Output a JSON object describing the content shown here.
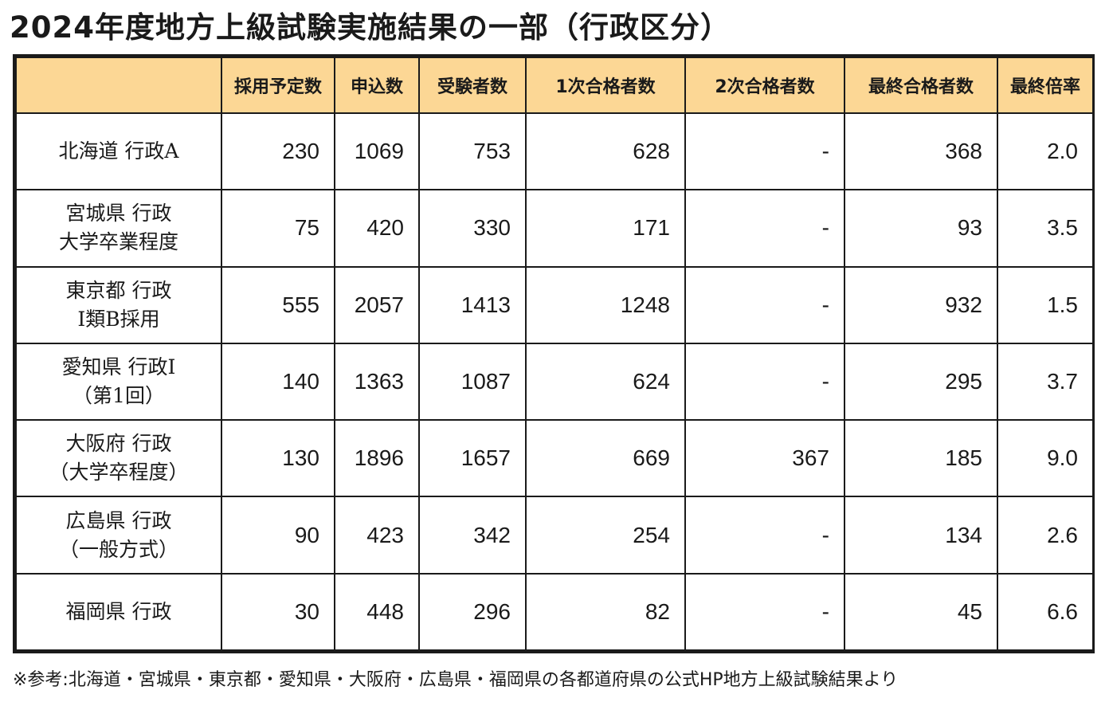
{
  "title": "2024年度地方上級試験実施結果の一部（行政区分）",
  "headers": [
    "",
    "採用予定数",
    "申込数",
    "受験者数",
    "1次合格者数",
    "2次合格者数",
    "最終合格者数",
    "最終倍率"
  ],
  "rows": [
    {
      "name1": "北海道 行政A",
      "name2": "",
      "cells": [
        "230",
        "1069",
        "753",
        "628",
        "-",
        "368",
        "2.0"
      ]
    },
    {
      "name1": "宮城県 行政",
      "name2": "大学卒業程度",
      "cells": [
        "75",
        "420",
        "330",
        "171",
        "-",
        "93",
        "3.5"
      ]
    },
    {
      "name1": "東京都 行政",
      "name2": "I類B採用",
      "cells": [
        "555",
        "2057",
        "1413",
        "1248",
        "-",
        "932",
        "1.5"
      ]
    },
    {
      "name1": "愛知県 行政I",
      "name2": "（第1回）",
      "cells": [
        "140",
        "1363",
        "1087",
        "624",
        "-",
        "295",
        "3.7"
      ]
    },
    {
      "name1": "大阪府 行政",
      "name2": "（大学卒程度）",
      "cells": [
        "130",
        "1896",
        "1657",
        "669",
        "367",
        "185",
        "9.0"
      ]
    },
    {
      "name1": "広島県 行政",
      "name2": "（一般方式）",
      "cells": [
        "90",
        "423",
        "342",
        "254",
        "-",
        "134",
        "2.6"
      ]
    },
    {
      "name1": "福岡県 行政",
      "name2": "",
      "cells": [
        "30",
        "448",
        "296",
        "82",
        "-",
        "45",
        "6.6"
      ]
    }
  ],
  "footnote": "※参考:北海道・宮城県・東京都・愛知県・大阪府・広島県・福岡県の各都道府県の公式HP地方上級試験結果より",
  "colors": {
    "header_bg": "#fcd795",
    "border": "#1a1a1a"
  }
}
